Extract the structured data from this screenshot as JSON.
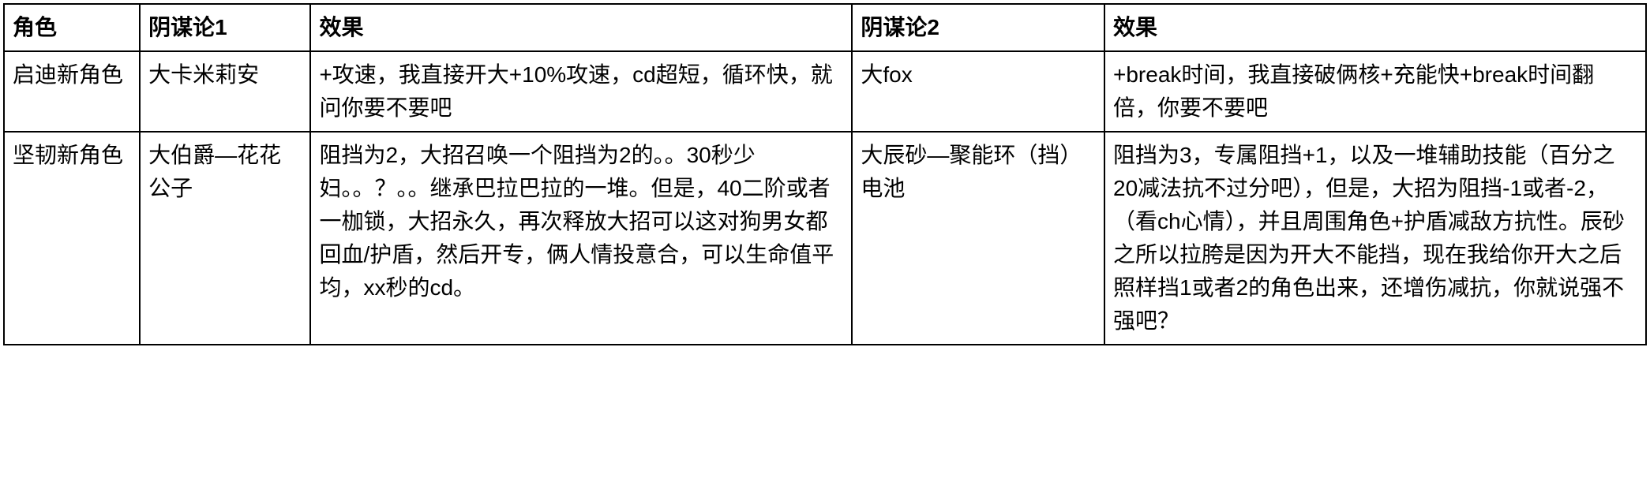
{
  "table": {
    "columns": [
      "角色",
      "阴谋论1",
      "效果",
      "阴谋论2",
      "效果"
    ],
    "rows": [
      {
        "role": "启迪新角色",
        "theory1": "大卡米莉安",
        "effect1": "+攻速，我直接开大+10%攻速，cd超短，循环快，就问你要不要吧",
        "theory2": "大fox",
        "effect2": " +break时间，我直接破俩核+充能快+break时间翻倍，你要不要吧"
      },
      {
        "role": "坚韧新角色",
        "theory1": "大伯爵—花花公子",
        "effect1": "阻挡为2，大招召唤一个阻挡为2的。。30秒少妇。。？。。继承巴拉巴拉的一堆。但是，40二阶或者一枷锁，大招永久，再次释放大招可以这对狗男女都回血/护盾，然后开专，俩人情投意合，可以生命值平均，xx秒的cd。",
        "theory2": "大辰砂—聚能环（挡）电池",
        "effect2": "阻挡为3，专属阻挡+1，以及一堆辅助技能（百分之20减法抗不过分吧），但是，大招为阻挡-1或者-2，（看ch心情），并且周围角色+护盾减敌方抗性。辰砂之所以拉胯是因为开大不能挡，现在我给你开大之后照样挡1或者2的角色出来，还增伤减抗，你就说强不强吧？"
      }
    ],
    "styling": {
      "border_color": "#000000",
      "border_width": 2,
      "background_color": "#ffffff",
      "text_color": "#000000",
      "header_font_weight": 700,
      "cell_font_size": 28,
      "line_height": 1.5,
      "col_widths_pct": [
        7,
        8.8,
        27.9,
        13,
        27.9
      ]
    }
  }
}
